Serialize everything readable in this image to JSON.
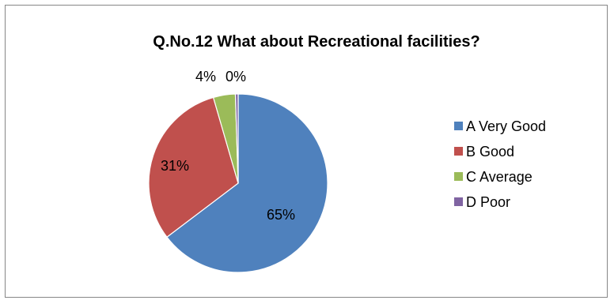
{
  "chart_data": {
    "type": "pie",
    "title": "Q.No.12 What about Recreational facilities?",
    "categories": [
      "A Very Good",
      "B Good",
      "C Average",
      "D Poor"
    ],
    "values": [
      65,
      31,
      4,
      0.5
    ],
    "data_labels": [
      "65%",
      "31%",
      "4%",
      "0%"
    ],
    "colors": [
      "#4F81BD",
      "#C0504D",
      "#9BBB59",
      "#8064A2"
    ],
    "legend_position": "right"
  }
}
